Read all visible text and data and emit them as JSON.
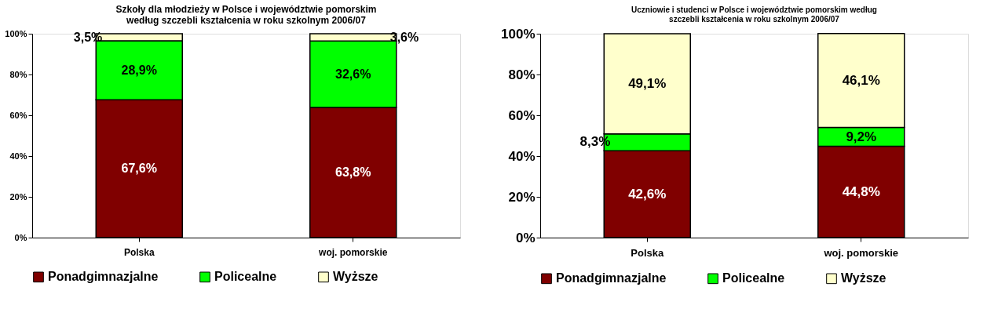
{
  "chart_data": [
    {
      "type": "bar",
      "stacked": true,
      "title": [
        "Szkoły dla młodzieży w Polsce i województwie pomorskim",
        "według szczebli kształcenia w roku szkolnym 2006/07"
      ],
      "categories": [
        "Polska",
        "woj. pomorskie"
      ],
      "series": [
        {
          "name": "Ponadgimnazjalne",
          "color": "#800000",
          "values": [
            67.6,
            63.8
          ],
          "value_labels": [
            "67,6%",
            "63,8%"
          ]
        },
        {
          "name": "Policealne",
          "color": "#00ff00",
          "values": [
            28.9,
            32.6
          ],
          "value_labels": [
            "28,9%",
            "32,6%"
          ]
        },
        {
          "name": "Wyższe",
          "color": "#ffffcc",
          "values": [
            3.5,
            3.6
          ],
          "value_labels": [
            "3,5%",
            "3,6%"
          ]
        }
      ],
      "ylim": [
        0,
        100
      ],
      "yticks": [
        {
          "value": 0,
          "label": "0%"
        },
        {
          "value": 20,
          "label": "20%"
        },
        {
          "value": 40,
          "label": "40%"
        },
        {
          "value": 60,
          "label": "60%"
        },
        {
          "value": 80,
          "label": "80%"
        },
        {
          "value": 100,
          "label": "100%"
        }
      ],
      "legend": "bottom",
      "grid": false
    },
    {
      "type": "bar",
      "stacked": true,
      "title": [
        "Uczniowie i studenci w Polsce i województwie pomorskim według",
        "szczebli kształcenia w roku szkolnym 2006/07"
      ],
      "categories": [
        "Polska",
        "woj. pomorskie"
      ],
      "series": [
        {
          "name": "Ponadgimnazjalne",
          "color": "#800000",
          "values": [
            42.6,
            44.8
          ],
          "value_labels": [
            "42,6%",
            "44,8%"
          ]
        },
        {
          "name": "Policealne",
          "color": "#00ff00",
          "values": [
            8.3,
            9.2
          ],
          "value_labels": [
            "8,3%",
            "9,2%"
          ]
        },
        {
          "name": "Wyższe",
          "color": "#ffffcc",
          "values": [
            49.1,
            46.1
          ],
          "value_labels": [
            "49,1%",
            "46,1%"
          ]
        }
      ],
      "ylim": [
        0,
        100
      ],
      "yticks": [
        {
          "value": 0,
          "label": "0%"
        },
        {
          "value": 20,
          "label": "20%"
        },
        {
          "value": 40,
          "label": "40%"
        },
        {
          "value": 60,
          "label": "60%"
        },
        {
          "value": 80,
          "label": "80%"
        },
        {
          "value": 100,
          "label": "100%"
        }
      ],
      "legend": "bottom",
      "grid": false
    }
  ]
}
